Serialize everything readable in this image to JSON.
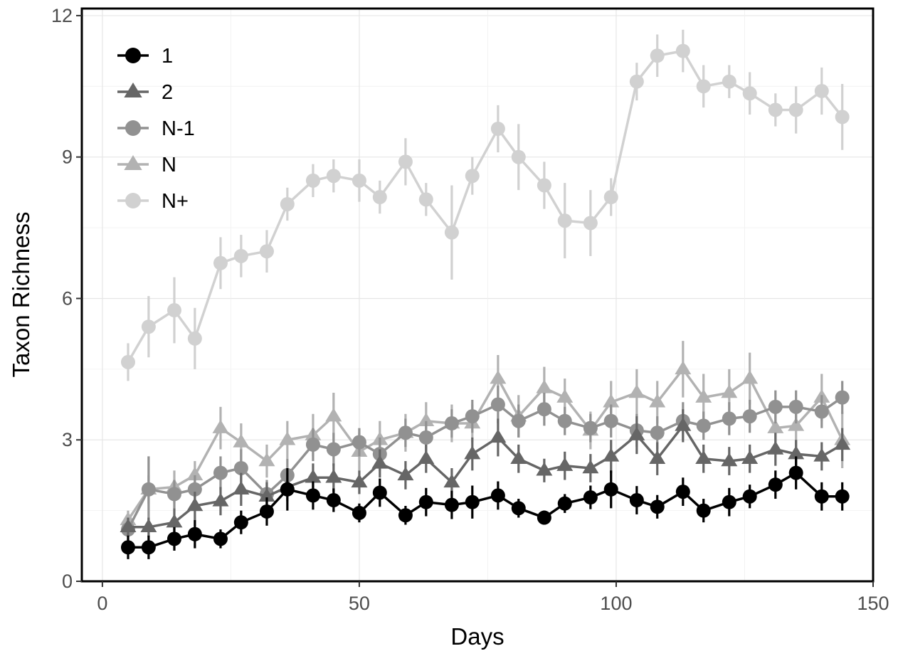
{
  "chart_data": {
    "type": "line",
    "title": "",
    "xlabel": "Days",
    "ylabel": "Taxon Richness",
    "xlim": [
      -4,
      150
    ],
    "ylim": [
      0,
      12.15
    ],
    "xticks": [
      0,
      50,
      100,
      150
    ],
    "xtick_labels": [
      "0",
      "50",
      "100",
      "150"
    ],
    "yticks": [
      0,
      3,
      6,
      9,
      12
    ],
    "ytick_labels": [
      "0",
      "3",
      "6",
      "9",
      "12"
    ],
    "grid": true,
    "legend_position": "top-left",
    "x": [
      5,
      9,
      14,
      18,
      23,
      27,
      32,
      36,
      41,
      45,
      50,
      54,
      59,
      63,
      68,
      72,
      77,
      81,
      86,
      90,
      95,
      99,
      104,
      108,
      113,
      117,
      122,
      126,
      131,
      135,
      140,
      144
    ],
    "series": [
      {
        "name": "1",
        "marker": "circle",
        "color": "#000000",
        "values": [
          0.72,
          0.72,
          0.9,
          1.0,
          0.9,
          1.25,
          1.48,
          1.95,
          1.82,
          1.72,
          1.45,
          1.88,
          1.4,
          1.68,
          1.62,
          1.68,
          1.82,
          1.55,
          1.35,
          1.65,
          1.78,
          1.95,
          1.72,
          1.58,
          1.9,
          1.5,
          1.68,
          1.8,
          2.05,
          2.3,
          1.8,
          1.8
        ],
        "errors": [
          0.25,
          0.25,
          0.25,
          0.3,
          0.2,
          0.25,
          0.3,
          0.45,
          0.3,
          0.25,
          0.2,
          0.3,
          0.2,
          0.3,
          0.3,
          0.35,
          0.3,
          0.2,
          0.15,
          0.2,
          0.25,
          0.4,
          0.3,
          0.25,
          0.3,
          0.25,
          0.3,
          0.25,
          0.3,
          0.35,
          0.3,
          0.3
        ]
      },
      {
        "name": "2",
        "marker": "triangle",
        "color": "#666666",
        "values": [
          1.15,
          1.15,
          1.25,
          1.6,
          1.7,
          1.95,
          1.8,
          2.0,
          2.2,
          2.2,
          2.1,
          2.5,
          2.25,
          2.6,
          2.1,
          2.7,
          3.05,
          2.6,
          2.35,
          2.45,
          2.4,
          2.65,
          3.1,
          2.6,
          3.3,
          2.6,
          2.55,
          2.6,
          2.8,
          2.7,
          2.65,
          2.9
        ],
        "errors": [
          0.2,
          0.2,
          0.3,
          0.3,
          0.3,
          0.35,
          0.3,
          0.3,
          0.3,
          0.3,
          0.25,
          0.3,
          0.3,
          0.3,
          0.3,
          0.35,
          0.4,
          0.3,
          0.25,
          0.3,
          0.3,
          0.35,
          0.4,
          0.35,
          0.35,
          0.3,
          0.3,
          0.3,
          0.35,
          0.3,
          0.3,
          0.35
        ]
      },
      {
        "name": "N-1",
        "marker": "circle",
        "color": "#919191",
        "values": [
          1.1,
          1.95,
          1.85,
          1.95,
          2.3,
          2.4,
          1.85,
          2.25,
          2.9,
          2.8,
          2.95,
          2.7,
          3.15,
          3.05,
          3.35,
          3.5,
          3.75,
          3.4,
          3.65,
          3.4,
          3.25,
          3.4,
          3.2,
          3.15,
          3.4,
          3.3,
          3.45,
          3.5,
          3.7,
          3.7,
          3.6,
          3.9
        ],
        "errors": [
          0.25,
          0.7,
          0.3,
          0.3,
          0.35,
          0.4,
          0.3,
          0.35,
          0.35,
          0.35,
          0.3,
          0.35,
          0.3,
          0.35,
          0.3,
          0.35,
          0.4,
          0.35,
          0.35,
          0.3,
          0.3,
          0.35,
          0.35,
          0.35,
          0.4,
          0.3,
          0.35,
          0.35,
          0.35,
          0.35,
          0.35,
          0.35
        ]
      },
      {
        "name": "N",
        "marker": "triangle",
        "color": "#b2b2b2",
        "values": [
          1.3,
          1.95,
          2.0,
          2.25,
          3.25,
          2.95,
          2.55,
          3.0,
          3.1,
          3.5,
          2.75,
          3.0,
          3.15,
          3.4,
          3.35,
          3.35,
          4.3,
          3.5,
          4.1,
          3.9,
          3.2,
          3.8,
          4.0,
          3.8,
          4.5,
          3.9,
          4.0,
          4.3,
          3.25,
          3.3,
          3.9,
          3.0
        ],
        "errors": [
          0.2,
          0.3,
          0.35,
          0.3,
          0.45,
          0.4,
          0.35,
          0.4,
          0.45,
          0.5,
          0.4,
          0.4,
          0.4,
          0.4,
          0.4,
          0.4,
          0.5,
          0.45,
          0.45,
          0.4,
          0.4,
          0.45,
          0.5,
          0.45,
          0.6,
          0.5,
          0.5,
          0.55,
          0.45,
          0.45,
          0.5,
          0.6
        ]
      },
      {
        "name": "N+",
        "marker": "circle",
        "color": "#d1d1d1",
        "values": [
          4.65,
          5.4,
          5.75,
          5.15,
          6.75,
          6.9,
          7.0,
          8.0,
          8.5,
          8.6,
          8.5,
          8.15,
          8.9,
          8.1,
          7.4,
          8.6,
          9.6,
          9.0,
          8.4,
          7.65,
          7.6,
          8.15,
          10.6,
          11.15,
          11.25,
          10.5,
          10.6,
          10.35,
          10.0,
          10.0,
          10.4,
          9.85
        ],
        "errors": [
          0.4,
          0.65,
          0.7,
          0.65,
          0.55,
          0.45,
          0.45,
          0.35,
          0.35,
          0.35,
          0.45,
          0.35,
          0.5,
          0.35,
          1.0,
          0.4,
          0.5,
          0.7,
          0.5,
          0.8,
          0.7,
          0.4,
          0.4,
          0.45,
          0.45,
          0.45,
          0.35,
          0.45,
          0.35,
          0.5,
          0.5,
          0.7
        ]
      }
    ]
  }
}
